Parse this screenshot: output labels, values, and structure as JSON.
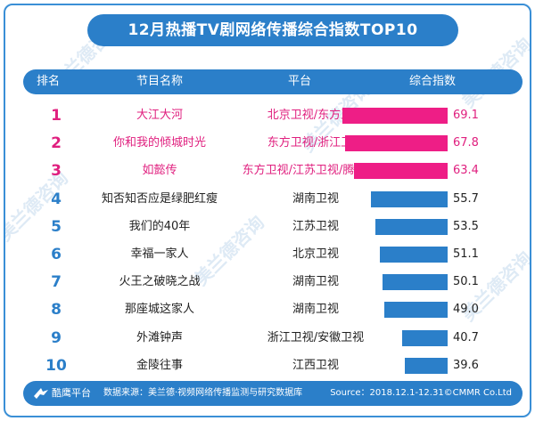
{
  "title": "12月热播TV剧网络传播综合指数TOP10",
  "header": {
    "rank": "排名",
    "title": "节目名称",
    "platform": "平台",
    "score": "综合指数"
  },
  "watermark_text": "美兰德咨询",
  "colors": {
    "accent": "#2b7fc9",
    "highlight": "#ee1e86"
  },
  "chart_data": {
    "type": "bar",
    "title": "12月热播TV剧网络传播综合指数TOP10",
    "categories": [
      "大江大河",
      "你和我的倾城时光",
      "如懿传",
      "知否知否应是绿肥红瘦",
      "我们的40年",
      "幸福一家人",
      "火王之破晓之战",
      "那座城这家人",
      "外滩钟声",
      "金陵往事"
    ],
    "series": [
      {
        "name": "综合指数",
        "values": [
          69.1,
          67.8,
          63.4,
          55.7,
          53.5,
          51.1,
          50.1,
          49.0,
          40.7,
          39.6
        ]
      }
    ],
    "value_labels": [
      "69.1",
      "67.8",
      "63.4",
      "55.7",
      "53.5",
      "51.1",
      "50.1",
      "49.0",
      "40.7",
      "39.6"
    ],
    "ranks": [
      "1",
      "2",
      "3",
      "4",
      "5",
      "6",
      "7",
      "8",
      "9",
      "10"
    ],
    "platforms": [
      "北京卫视/东方卫视",
      "东方卫视/浙江卫视",
      "东方卫视/江苏卫视/腾讯视频",
      "湖南卫视",
      "江苏卫视",
      "北京卫视",
      "湖南卫视",
      "湖南卫视",
      "浙江卫视/安徽卫视",
      "江西卫视"
    ],
    "highlight_top": 3,
    "orientation": "horizontal"
  },
  "footer": {
    "platform": "酷鹰平台",
    "source": "数据来源：美兰德·视频网络传播监测与研究数据库",
    "credit": "Source：2018.12.1-12.31©CMMR Co.Ltd"
  }
}
